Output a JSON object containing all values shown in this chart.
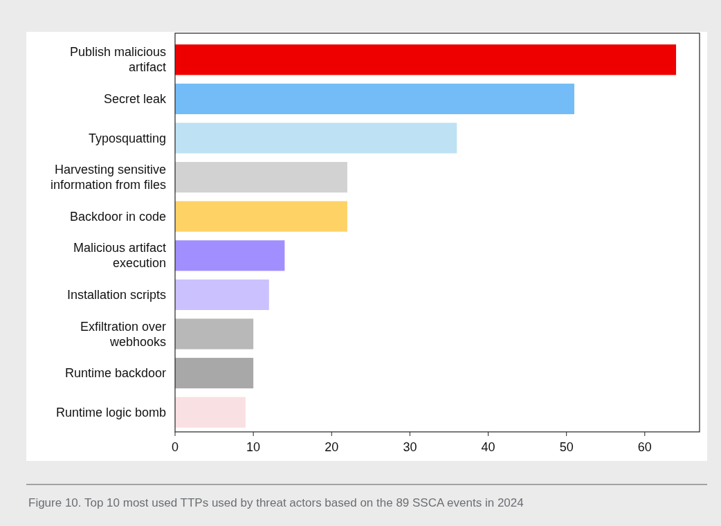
{
  "chart_data": {
    "type": "bar",
    "orientation": "horizontal",
    "categories": [
      "Publish malicious artifact",
      "Secret leak",
      "Typosquatting",
      "Harvesting sensitive information from files",
      "Backdoor in code",
      "Malicious artifact execution",
      "Installation scripts",
      "Exfiltration over webhooks",
      "Runtime backdoor",
      "Runtime logic bomb"
    ],
    "values": [
      64,
      51,
      36,
      22,
      22,
      14,
      12,
      10,
      10,
      9
    ],
    "colors": [
      "#ee0000",
      "#73bcf7",
      "#bee1f4",
      "#d2d2d2",
      "#ffd266",
      "#a18fff",
      "#cbc1ff",
      "#b8b8b8",
      "#a8a8a8",
      "#f9e0e2"
    ],
    "xlim": [
      0,
      67
    ],
    "xticks": [
      0,
      10,
      20,
      30,
      40,
      50,
      60
    ],
    "grid": false,
    "annotations": [
      "Figure 10. Top 10 most used TTPs used by threat actors based on the 89 SSCA events in 2024"
    ]
  }
}
